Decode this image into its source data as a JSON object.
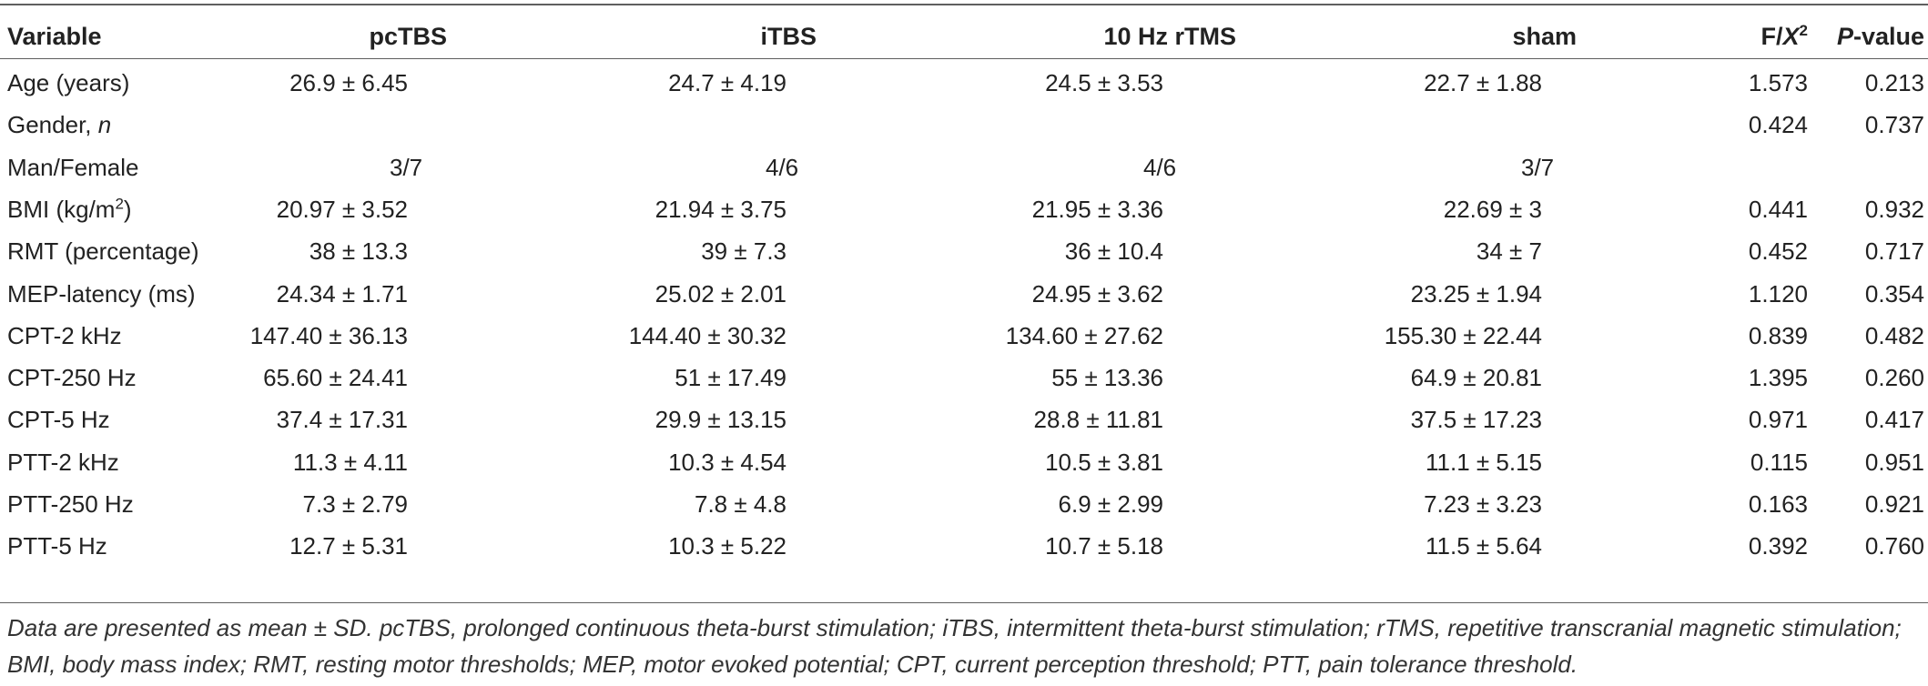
{
  "headers": {
    "variable": "Variable",
    "pctbs": "pcTBS",
    "itbs": "iTBS",
    "rtms": "10 Hz rTMS",
    "sham": "sham",
    "fx_prefix": "F/",
    "fx_var": "X",
    "fx_sup": "2",
    "p_italic": "P",
    "p_rest": "-value"
  },
  "rows": [
    {
      "label": "Age (years)",
      "pctbs": "26.9 ± 6.45",
      "itbs": "24.7 ± 4.19",
      "rtms": "24.5 ± 3.53",
      "sham": "22.7 ± 1.88",
      "f": "1.573",
      "p": "0.213"
    },
    {
      "label": "Gender, ",
      "label_italic": "n",
      "pctbs": "",
      "itbs": "",
      "rtms": "",
      "sham": "",
      "f": "0.424",
      "p": "0.737"
    },
    {
      "label": "Man/Female",
      "pctbs": "3/7",
      "itbs": "4/6",
      "rtms": "4/6",
      "sham": "3/7",
      "f": "",
      "p": ""
    },
    {
      "label": "BMI (kg/m",
      "label_sup": "2",
      "label_tail": ")",
      "pctbs": "20.97 ± 3.52",
      "itbs": "21.94 ± 3.75",
      "rtms": "21.95 ± 3.36",
      "sham": "22.69 ± 3",
      "f": "0.441",
      "p": "0.932"
    },
    {
      "label": "RMT (percentage)",
      "pctbs": "38 ± 13.3",
      "itbs": "39 ± 7.3",
      "rtms": "36 ± 10.4",
      "sham": "34 ± 7",
      "f": "0.452",
      "p": "0.717"
    },
    {
      "label": "MEP-latency (ms)",
      "pctbs": "24.34 ± 1.71",
      "itbs": "25.02 ± 2.01",
      "rtms": "24.95 ± 3.62",
      "sham": "23.25 ± 1.94",
      "f": "1.120",
      "p": "0.354"
    },
    {
      "label": "CPT-2 kHz",
      "pctbs": "147.40 ± 36.13",
      "itbs": "144.40 ± 30.32",
      "rtms": "134.60 ± 27.62",
      "sham": "155.30 ± 22.44",
      "f": "0.839",
      "p": "0.482"
    },
    {
      "label": "CPT-250 Hz",
      "pctbs": "65.60 ± 24.41",
      "itbs": "51 ± 17.49",
      "rtms": "55 ± 13.36",
      "sham": "64.9 ± 20.81",
      "f": "1.395",
      "p": "0.260"
    },
    {
      "label": "CPT-5 Hz",
      "pctbs": "37.4 ± 17.31",
      "itbs": "29.9 ± 13.15",
      "rtms": "28.8 ± 11.81",
      "sham": "37.5 ± 17.23",
      "f": "0.971",
      "p": "0.417"
    },
    {
      "label": "PTT-2 kHz",
      "pctbs": "11.3 ± 4.11",
      "itbs": "10.3 ± 4.54",
      "rtms": "10.5 ± 3.81",
      "sham": "11.1 ± 5.15",
      "f": "0.115",
      "p": "0.951"
    },
    {
      "label": "PTT-250 Hz",
      "pctbs": "7.3 ± 2.79",
      "itbs": "7.8 ± 4.8",
      "rtms": "6.9 ± 2.99",
      "sham": "7.23 ± 3.23",
      "f": "0.163",
      "p": "0.921"
    },
    {
      "label": "PTT-5 Hz",
      "pctbs": "12.7 ± 5.31",
      "itbs": "10.3 ± 5.22",
      "rtms": "10.7 ± 5.18",
      "sham": "11.5 ± 5.64",
      "f": "0.392",
      "p": "0.760"
    }
  ],
  "footnote": "Data are presented as mean ± SD. pcTBS, prolonged continuous theta-burst stimulation; iTBS, intermittent theta-burst stimulation; rTMS, repetitive transcranial magnetic stimulation; BMI, body mass index; RMT, resting motor thresholds; MEP, motor evoked potential; CPT, current perception threshold; PTT, pain tolerance threshold."
}
